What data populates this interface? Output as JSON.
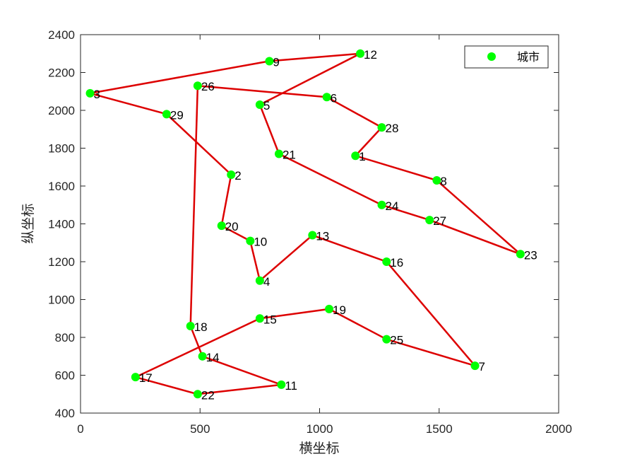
{
  "chart_data": {
    "type": "line",
    "title": "",
    "xlabel": "横坐标",
    "ylabel": "纵坐标",
    "xlim": [
      0,
      2000
    ],
    "ylim": [
      400,
      2400
    ],
    "xticks": [
      0,
      500,
      1000,
      1500,
      2000
    ],
    "yticks": [
      400,
      600,
      800,
      1000,
      1200,
      1400,
      1600,
      1800,
      2000,
      2200,
      2400
    ],
    "grid": false,
    "legend": {
      "position": "top-right",
      "entries": [
        "城市"
      ]
    },
    "colors": {
      "marker": "#00ff00",
      "route": "#dd0000",
      "axis": "#262626"
    },
    "cities": [
      {
        "id": 1,
        "x": 1150,
        "y": 1760
      },
      {
        "id": 2,
        "x": 630,
        "y": 1660
      },
      {
        "id": 3,
        "x": 40,
        "y": 2090
      },
      {
        "id": 4,
        "x": 750,
        "y": 1100
      },
      {
        "id": 5,
        "x": 750,
        "y": 2030
      },
      {
        "id": 6,
        "x": 1030,
        "y": 2070
      },
      {
        "id": 7,
        "x": 1650,
        "y": 650
      },
      {
        "id": 8,
        "x": 1490,
        "y": 1630
      },
      {
        "id": 9,
        "x": 790,
        "y": 2260
      },
      {
        "id": 10,
        "x": 710,
        "y": 1310
      },
      {
        "id": 11,
        "x": 840,
        "y": 550
      },
      {
        "id": 12,
        "x": 1170,
        "y": 2300
      },
      {
        "id": 13,
        "x": 970,
        "y": 1340
      },
      {
        "id": 14,
        "x": 510,
        "y": 700
      },
      {
        "id": 15,
        "x": 750,
        "y": 900
      },
      {
        "id": 16,
        "x": 1280,
        "y": 1200
      },
      {
        "id": 17,
        "x": 230,
        "y": 590
      },
      {
        "id": 18,
        "x": 460,
        "y": 860
      },
      {
        "id": 19,
        "x": 1040,
        "y": 950
      },
      {
        "id": 20,
        "x": 590,
        "y": 1390
      },
      {
        "id": 21,
        "x": 830,
        "y": 1770
      },
      {
        "id": 22,
        "x": 490,
        "y": 500
      },
      {
        "id": 23,
        "x": 1840,
        "y": 1240
      },
      {
        "id": 24,
        "x": 1260,
        "y": 1500
      },
      {
        "id": 25,
        "x": 1280,
        "y": 790
      },
      {
        "id": 26,
        "x": 490,
        "y": 2130
      },
      {
        "id": 27,
        "x": 1460,
        "y": 1420
      },
      {
        "id": 28,
        "x": 1260,
        "y": 1910
      },
      {
        "id": 29,
        "x": 360,
        "y": 1980
      }
    ],
    "route": [
      1,
      8,
      23,
      27,
      24,
      21,
      5,
      12,
      9,
      3,
      29,
      2,
      20,
      10,
      4,
      13,
      16,
      7,
      25,
      19,
      15,
      17,
      22,
      11,
      14,
      18,
      26,
      6,
      28,
      1
    ]
  }
}
